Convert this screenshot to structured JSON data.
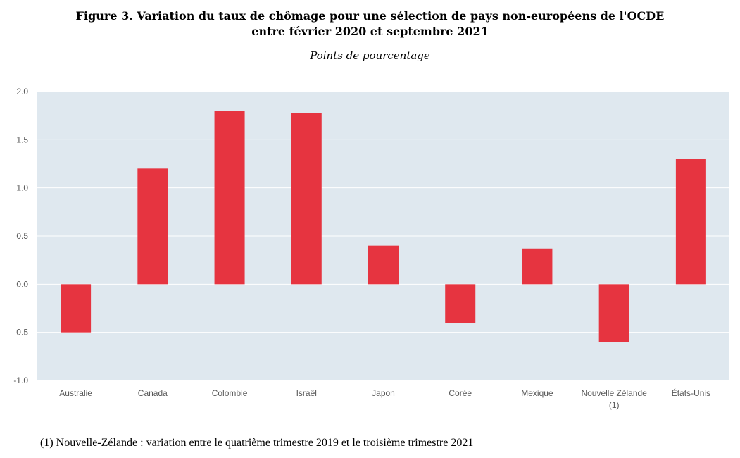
{
  "header": {
    "title_line1": "Figure 3. Variation du taux de chômage pour une sélection de pays non-européens de l'OCDE",
    "title_line2": "entre février 2020 et septembre 2021",
    "subtitle": "Points de pourcentage"
  },
  "footnote": "(1) Nouvelle-Zélande : variation entre le quatrième trimestre 2019 et le troisième trimestre 2021",
  "chart_data": {
    "type": "bar",
    "title": "Figure 3. Variation du taux de chômage pour une sélection de pays non-européens de l'OCDE entre février 2020 et septembre 2021",
    "subtitle": "Points de pourcentage",
    "categories": [
      "Australie",
      "Canada",
      "Colombie",
      "Israël",
      "Japon",
      "Corée",
      "Mexique",
      "Nouvelle Zélande (1)",
      "États-Unis"
    ],
    "category_lines": [
      [
        "Australie"
      ],
      [
        "Canada"
      ],
      [
        "Colombie"
      ],
      [
        "Israël"
      ],
      [
        "Japon"
      ],
      [
        "Corée"
      ],
      [
        "Mexique"
      ],
      [
        "Nouvelle Zélande",
        "(1)"
      ],
      [
        "États-Unis"
      ]
    ],
    "values": [
      -0.5,
      1.2,
      1.8,
      1.78,
      0.4,
      -0.4,
      0.37,
      -0.6,
      1.3
    ],
    "ylim": [
      -1.0,
      2.0
    ],
    "yticks": [
      2.0,
      1.5,
      1.0,
      0.5,
      0.0,
      -0.5,
      -1.0
    ],
    "ytick_labels": [
      "2.0",
      "1.5",
      "1.0",
      "0.5",
      "0.0",
      "-0.5",
      "-1.0"
    ],
    "xlabel": "",
    "ylabel": "",
    "grid": true,
    "legend": "none",
    "colors": {
      "bar": "#e63440",
      "plot_background": "#dfe8ef",
      "grid": "#ffffff",
      "tick_text": "#595959"
    }
  }
}
